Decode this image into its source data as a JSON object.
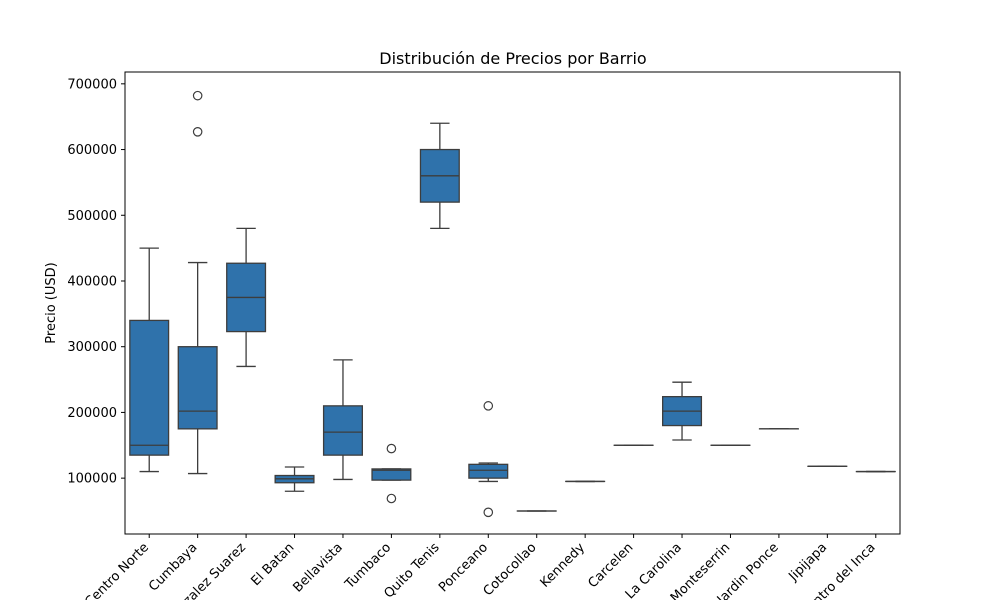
{
  "chart_data": {
    "type": "box",
    "title": "Distribución de Precios por Barrio",
    "xlabel": "",
    "ylabel": "Precio (USD)",
    "ylim": [
      15000,
      718000
    ],
    "yticks": [
      100000,
      200000,
      300000,
      400000,
      500000,
      600000,
      700000
    ],
    "ytick_labels": [
      "100000",
      "200000",
      "300000",
      "400000",
      "500000",
      "600000",
      "700000"
    ],
    "categories": [
      "Centro Norte",
      "Cumbaya",
      "Gonzalez Suarez",
      "El Batan",
      "Bellavista",
      "Tumbaco",
      "Quito Tenis",
      "Ponceano",
      "Cotocollao",
      "Kennedy",
      "Carcelen",
      "La Carolina",
      "Monteserrin",
      "Jardin Ponce",
      "Jipijapa",
      "Centro del Inca"
    ],
    "box_color": "#2f72ab",
    "boxes": [
      {
        "category": "Centro Norte",
        "whisker_low": 110000,
        "q1": 135000,
        "median": 150000,
        "q3": 340000,
        "whisker_high": 450000,
        "outliers": []
      },
      {
        "category": "Cumbaya",
        "whisker_low": 107000,
        "q1": 175000,
        "median": 202000,
        "q3": 300000,
        "whisker_high": 428000,
        "outliers": [
          682000,
          627000
        ]
      },
      {
        "category": "Gonzalez Suarez",
        "whisker_low": 270000,
        "q1": 323000,
        "median": 375000,
        "q3": 427000,
        "whisker_high": 480000,
        "outliers": []
      },
      {
        "category": "El Batan",
        "whisker_low": 80000,
        "q1": 93000,
        "median": 99000,
        "q3": 104000,
        "whisker_high": 117000,
        "outliers": []
      },
      {
        "category": "Bellavista",
        "whisker_low": 98000,
        "q1": 135000,
        "median": 170000,
        "q3": 210000,
        "whisker_high": 280000,
        "outliers": []
      },
      {
        "category": "Tumbaco",
        "whisker_low": 97000,
        "q1": 97000,
        "median": 112000,
        "q3": 114000,
        "whisker_high": 114000,
        "outliers": [
          145000,
          69000
        ]
      },
      {
        "category": "Quito Tenis",
        "whisker_low": 480000,
        "q1": 520000,
        "median": 560000,
        "q3": 600000,
        "whisker_high": 640000,
        "outliers": []
      },
      {
        "category": "Ponceano",
        "whisker_low": 95000,
        "q1": 100000,
        "median": 112000,
        "q3": 121000,
        "whisker_high": 123000,
        "outliers": [
          210000,
          48000
        ]
      },
      {
        "category": "Cotocollao",
        "whisker_low": 50000,
        "q1": 50000,
        "median": 50000,
        "q3": 50000,
        "whisker_high": 50000,
        "outliers": []
      },
      {
        "category": "Kennedy",
        "whisker_low": 95000,
        "q1": 95000,
        "median": 95000,
        "q3": 95000,
        "whisker_high": 95000,
        "outliers": []
      },
      {
        "category": "Carcelen",
        "whisker_low": 150000,
        "q1": 150000,
        "median": 150000,
        "q3": 150000,
        "whisker_high": 150000,
        "outliers": []
      },
      {
        "category": "La Carolina",
        "whisker_low": 158000,
        "q1": 180000,
        "median": 202000,
        "q3": 224000,
        "whisker_high": 246000,
        "outliers": []
      },
      {
        "category": "Monteserrin",
        "whisker_low": 150000,
        "q1": 150000,
        "median": 150000,
        "q3": 150000,
        "whisker_high": 150000,
        "outliers": []
      },
      {
        "category": "Jardin Ponce",
        "whisker_low": 175000,
        "q1": 175000,
        "median": 175000,
        "q3": 175000,
        "whisker_high": 175000,
        "outliers": []
      },
      {
        "category": "Jipijapa",
        "whisker_low": 118000,
        "q1": 118000,
        "median": 118000,
        "q3": 118000,
        "whisker_high": 118000,
        "outliers": []
      },
      {
        "category": "Centro del Inca",
        "whisker_low": 110000,
        "q1": 110000,
        "median": 110000,
        "q3": 110000,
        "whisker_high": 110000,
        "outliers": []
      }
    ],
    "grid": false,
    "legend": "none"
  }
}
